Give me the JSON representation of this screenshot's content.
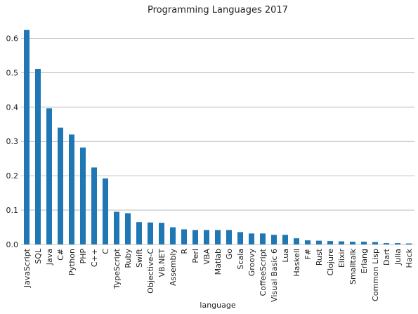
{
  "chart_data": {
    "type": "bar",
    "title": "Programming Languages 2017",
    "xlabel": "language",
    "ylabel": "",
    "ylim": [
      0,
      0.65
    ],
    "yticks": [
      "0.0",
      "0.1",
      "0.2",
      "0.3",
      "0.4",
      "0.5",
      "0.6"
    ],
    "grid": "horizontal",
    "legend": "none",
    "bar_color": "#1f77b4",
    "grid_color": "#b0b0b0",
    "categories": [
      "JavaScript",
      "SQL",
      "Java",
      "C#",
      "Python",
      "PHP",
      "C++",
      "C",
      "TypeScript",
      "Ruby",
      "Swift",
      "Objective-C",
      "VB.NET",
      "Assembly",
      "R",
      "Perl",
      "VBA",
      "Matlab",
      "Go",
      "Scala",
      "Groovy",
      "CoffeeScript",
      "Visual Basic 6",
      "Lua",
      "Haskell",
      "F#",
      "Rust",
      "Clojure",
      "Elixir",
      "Smalltalk",
      "Erlang",
      "Common Lisp",
      "Dart",
      "Julia",
      "Hack"
    ],
    "values": [
      0.624,
      0.511,
      0.396,
      0.34,
      0.32,
      0.282,
      0.224,
      0.192,
      0.095,
      0.091,
      0.065,
      0.064,
      0.063,
      0.05,
      0.044,
      0.042,
      0.042,
      0.042,
      0.042,
      0.036,
      0.032,
      0.032,
      0.028,
      0.028,
      0.018,
      0.012,
      0.011,
      0.01,
      0.009,
      0.008,
      0.008,
      0.007,
      0.004,
      0.004,
      0.003
    ]
  }
}
